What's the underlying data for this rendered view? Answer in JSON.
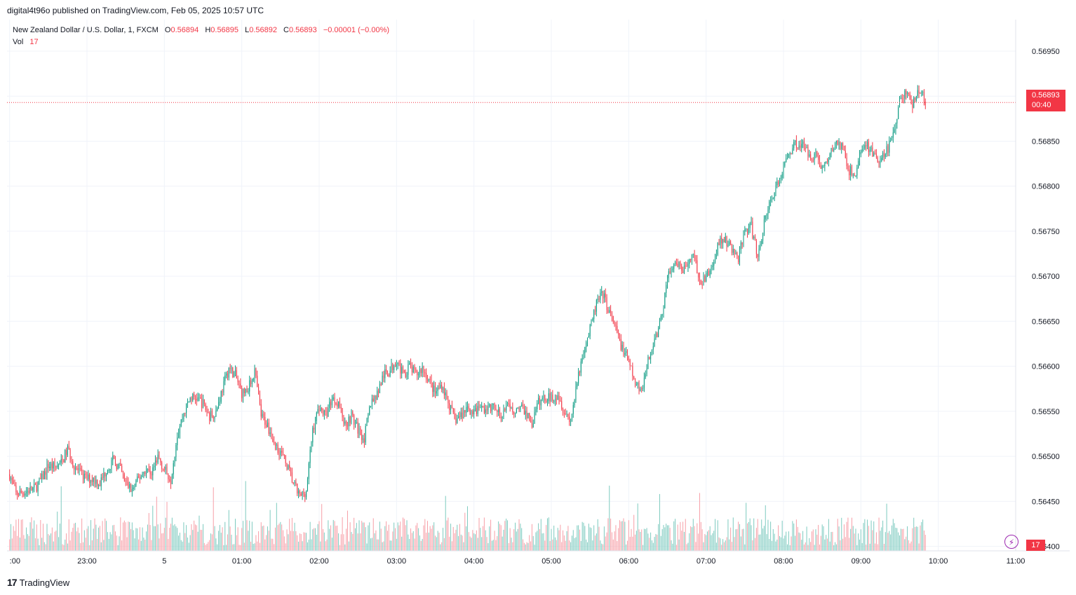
{
  "header": {
    "published_line": "digital4t96o published on TradingView.com, Feb 05, 2025 10:57 UTC"
  },
  "legend": {
    "symbol": "New Zealand Dollar / U.S. Dollar, 1, FXCM",
    "o_label": "O",
    "o_value": "0.56894",
    "h_label": "H",
    "h_value": "0.56895",
    "l_label": "L",
    "l_value": "0.56892",
    "c_label": "C",
    "c_value": "0.56893",
    "change": "−0.00001 (−0.00%)",
    "vol_label": "Vol",
    "vol_value": "17"
  },
  "price_tag": {
    "price": "0.56893",
    "countdown": "00:40"
  },
  "vol_tag": "17",
  "footer": {
    "brand": "TradingView"
  },
  "colors": {
    "up": "#089981",
    "down": "#f23645",
    "vol_up": "#7fcbc0",
    "vol_down": "#f7a0a8"
  },
  "icons": {
    "logo": "tradingview-logo-icon",
    "alert": "lightning-icon"
  },
  "chart_data": {
    "type": "candlestick",
    "symbol": "NZDUSD",
    "interval": "1m",
    "y_ticks": [
      "0.56400",
      "0.56450",
      "0.56500",
      "0.56550",
      "0.56600",
      "0.56650",
      "0.56700",
      "0.56750",
      "0.56800",
      "0.56850",
      "0.56900",
      "0.56950"
    ],
    "ylim": [
      0.56395,
      0.56985
    ],
    "x_ticks": [
      ":00",
      "23:00",
      "5",
      "01:00",
      "02:00",
      "03:00",
      "04:00",
      "05:00",
      "06:00",
      "07:00",
      "08:00",
      "09:00",
      "10:00",
      "11:00"
    ],
    "x_tick_minutes": [
      -120,
      -60,
      0,
      60,
      120,
      180,
      240,
      300,
      360,
      420,
      480,
      540,
      600,
      660
    ],
    "last_price": 0.56893,
    "last_volume": 17,
    "grid": true,
    "close_path": [
      [
        -120,
        0.5648
      ],
      [
        -115,
        0.56458
      ],
      [
        -110,
        0.5646
      ],
      [
        -105,
        0.56462
      ],
      [
        -100,
        0.56465
      ],
      [
        -95,
        0.56475
      ],
      [
        -90,
        0.5649
      ],
      [
        -85,
        0.56488
      ],
      [
        -80,
        0.56492
      ],
      [
        -75,
        0.56508
      ],
      [
        -70,
        0.5649
      ],
      [
        -65,
        0.5648
      ],
      [
        -60,
        0.56475
      ],
      [
        -55,
        0.56475
      ],
      [
        -50,
        0.5647
      ],
      [
        -45,
        0.56485
      ],
      [
        -40,
        0.56495
      ],
      [
        -35,
        0.56488
      ],
      [
        -30,
        0.5647
      ],
      [
        -25,
        0.56462
      ],
      [
        -20,
        0.56475
      ],
      [
        -15,
        0.56485
      ],
      [
        -10,
        0.56482
      ],
      [
        -5,
        0.565
      ],
      [
        0,
        0.56485
      ],
      [
        5,
        0.56475
      ],
      [
        10,
        0.56525
      ],
      [
        15,
        0.56548
      ],
      [
        20,
        0.56565
      ],
      [
        25,
        0.56565
      ],
      [
        30,
        0.56558
      ],
      [
        35,
        0.56545
      ],
      [
        40,
        0.5655
      ],
      [
        45,
        0.56575
      ],
      [
        50,
        0.56598
      ],
      [
        55,
        0.5659
      ],
      [
        60,
        0.5657
      ],
      [
        65,
        0.56575
      ],
      [
        70,
        0.56595
      ],
      [
        75,
        0.56545
      ],
      [
        80,
        0.56535
      ],
      [
        85,
        0.56515
      ],
      [
        90,
        0.56505
      ],
      [
        95,
        0.5649
      ],
      [
        100,
        0.5647
      ],
      [
        105,
        0.56455
      ],
      [
        110,
        0.56462
      ],
      [
        115,
        0.5653
      ],
      [
        120,
        0.56555
      ],
      [
        125,
        0.56545
      ],
      [
        130,
        0.56565
      ],
      [
        135,
        0.5656
      ],
      [
        140,
        0.56535
      ],
      [
        145,
        0.56545
      ],
      [
        150,
        0.5653
      ],
      [
        155,
        0.5652
      ],
      [
        160,
        0.5656
      ],
      [
        165,
        0.5657
      ],
      [
        170,
        0.5659
      ],
      [
        175,
        0.56595
      ],
      [
        180,
        0.56608
      ],
      [
        185,
        0.5659
      ],
      [
        190,
        0.566
      ],
      [
        195,
        0.5659
      ],
      [
        200,
        0.56598
      ],
      [
        205,
        0.56585
      ],
      [
        210,
        0.5657
      ],
      [
        215,
        0.5658
      ],
      [
        220,
        0.5656
      ],
      [
        225,
        0.5654
      ],
      [
        230,
        0.56545
      ],
      [
        235,
        0.56555
      ],
      [
        240,
        0.56548
      ],
      [
        245,
        0.56555
      ],
      [
        250,
        0.56552
      ],
      [
        255,
        0.56555
      ],
      [
        260,
        0.56545
      ],
      [
        265,
        0.56555
      ],
      [
        270,
        0.5655
      ],
      [
        275,
        0.56555
      ],
      [
        280,
        0.5655
      ],
      [
        285,
        0.56535
      ],
      [
        290,
        0.5656
      ],
      [
        295,
        0.56565
      ],
      [
        300,
        0.56565
      ],
      [
        305,
        0.5657
      ],
      [
        310,
        0.5655
      ],
      [
        315,
        0.5654
      ],
      [
        320,
        0.5658
      ],
      [
        325,
        0.5662
      ],
      [
        330,
        0.5664
      ],
      [
        335,
        0.5667
      ],
      [
        340,
        0.5668
      ],
      [
        345,
        0.5666
      ],
      [
        350,
        0.5664
      ],
      [
        355,
        0.5662
      ],
      [
        360,
        0.56605
      ],
      [
        365,
        0.5658
      ],
      [
        370,
        0.56575
      ],
      [
        375,
        0.56605
      ],
      [
        380,
        0.5663
      ],
      [
        385,
        0.5665
      ],
      [
        390,
        0.567
      ],
      [
        395,
        0.5671
      ],
      [
        400,
        0.5671
      ],
      [
        405,
        0.56705
      ],
      [
        410,
        0.5673
      ],
      [
        415,
        0.5669
      ],
      [
        420,
        0.567
      ],
      [
        425,
        0.5671
      ],
      [
        430,
        0.5674
      ],
      [
        435,
        0.5674
      ],
      [
        440,
        0.5673
      ],
      [
        445,
        0.5672
      ],
      [
        450,
        0.5675
      ],
      [
        455,
        0.56755
      ],
      [
        460,
        0.5672
      ],
      [
        465,
        0.5676
      ],
      [
        470,
        0.56785
      ],
      [
        475,
        0.568
      ],
      [
        480,
        0.5682
      ],
      [
        485,
        0.5684
      ],
      [
        490,
        0.56848
      ],
      [
        495,
        0.56845
      ],
      [
        500,
        0.56835
      ],
      [
        505,
        0.56835
      ],
      [
        510,
        0.5682
      ],
      [
        515,
        0.5683
      ],
      [
        520,
        0.56848
      ],
      [
        525,
        0.56845
      ],
      [
        530,
        0.5682
      ],
      [
        535,
        0.5681
      ],
      [
        540,
        0.5684
      ],
      [
        545,
        0.56845
      ],
      [
        550,
        0.56835
      ],
      [
        555,
        0.56825
      ],
      [
        560,
        0.5684
      ],
      [
        565,
        0.56855
      ],
      [
        570,
        0.56895
      ],
      [
        575,
        0.56905
      ],
      [
        580,
        0.5689
      ],
      [
        585,
        0.56908
      ],
      [
        590,
        0.56893
      ]
    ]
  }
}
